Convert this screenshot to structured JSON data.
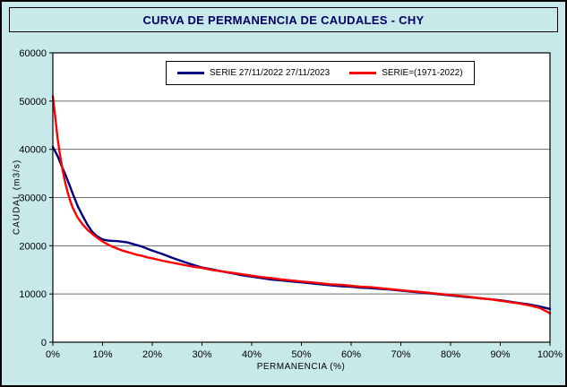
{
  "page": {
    "background_color": "#C7E9E9",
    "border_color": "#000000",
    "title_color": "#000066"
  },
  "title": "CURVA DE PERMANENCIA DE CAUDALES - CHY",
  "chart_data": {
    "type": "line",
    "title": "CURVA DE PERMANENCIA DE CAUDALES - CHY",
    "xlabel": "PERMANENCIA (%)",
    "ylabel": "CAUDAL (m3/s)",
    "xlim": [
      0,
      100
    ],
    "ylim": [
      0,
      60000
    ],
    "y_tick_step": 10000,
    "x_tick_labels": [
      "0%",
      "10%",
      "20%",
      "30%",
      "40%",
      "50%",
      "60%",
      "70%",
      "80%",
      "90%",
      "100%"
    ],
    "y_tick_labels": [
      "0",
      "10000",
      "20000",
      "30000",
      "40000",
      "50000",
      "60000"
    ],
    "grid": "horizontal",
    "gridline_color": "#6b6b6b",
    "plot_bg": "#FFFFFF",
    "legend_position": "top-center",
    "series": [
      {
        "name": "SERIE 27/11/2022 27/11/2023",
        "color": "#000080",
        "x": [
          0,
          0.5,
          1,
          1.5,
          2,
          2.5,
          3,
          3.5,
          4,
          5,
          6,
          7,
          8,
          9,
          10,
          11,
          12,
          13,
          14,
          15,
          16,
          17,
          18,
          19,
          20,
          22,
          24,
          26,
          28,
          30,
          32,
          34,
          36,
          38,
          40,
          42,
          44,
          46,
          48,
          50,
          52,
          54,
          56,
          58,
          60,
          62,
          64,
          66,
          68,
          70,
          72,
          74,
          76,
          78,
          80,
          82,
          84,
          86,
          88,
          90,
          92,
          94,
          96,
          98,
          100
        ],
        "y": [
          40500,
          39500,
          38500,
          37200,
          36000,
          34800,
          33500,
          32200,
          30800,
          28200,
          26200,
          24300,
          22800,
          21900,
          21300,
          21100,
          21000,
          20950,
          20850,
          20700,
          20400,
          20100,
          19800,
          19400,
          19000,
          18300,
          17500,
          16800,
          16100,
          15500,
          15100,
          14700,
          14300,
          13900,
          13600,
          13300,
          13000,
          12800,
          12600,
          12400,
          12200,
          12000,
          11800,
          11600,
          11500,
          11300,
          11200,
          11050,
          10900,
          10700,
          10500,
          10300,
          10100,
          9900,
          9700,
          9500,
          9300,
          9100,
          8900,
          8700,
          8400,
          8100,
          7800,
          7400,
          6900
        ]
      },
      {
        "name": "SERIE=(1971-2022)",
        "color": "#FF0000",
        "x": [
          0,
          0.5,
          1,
          1.5,
          2,
          2.5,
          3,
          3.5,
          4,
          5,
          6,
          7,
          8,
          9,
          10,
          11,
          12,
          13,
          14,
          15,
          16,
          17,
          18,
          19,
          20,
          22,
          24,
          26,
          28,
          30,
          32,
          34,
          36,
          38,
          40,
          42,
          44,
          46,
          48,
          50,
          52,
          54,
          56,
          58,
          60,
          62,
          64,
          66,
          68,
          70,
          72,
          74,
          76,
          78,
          80,
          82,
          84,
          86,
          88,
          90,
          92,
          94,
          96,
          98,
          100
        ],
        "y": [
          51000,
          46500,
          42000,
          38500,
          35500,
          33000,
          31000,
          29300,
          27900,
          25800,
          24400,
          23300,
          22400,
          21600,
          20900,
          20300,
          19800,
          19400,
          19000,
          18700,
          18400,
          18100,
          17900,
          17600,
          17400,
          16900,
          16500,
          16100,
          15700,
          15400,
          15000,
          14700,
          14400,
          14100,
          13800,
          13500,
          13300,
          13000,
          12800,
          12600,
          12400,
          12200,
          12000,
          11900,
          11700,
          11500,
          11400,
          11200,
          11000,
          10800,
          10600,
          10400,
          10200,
          10000,
          9800,
          9600,
          9400,
          9100,
          8900,
          8600,
          8300,
          8000,
          7600,
          7100,
          6000
        ]
      }
    ]
  }
}
